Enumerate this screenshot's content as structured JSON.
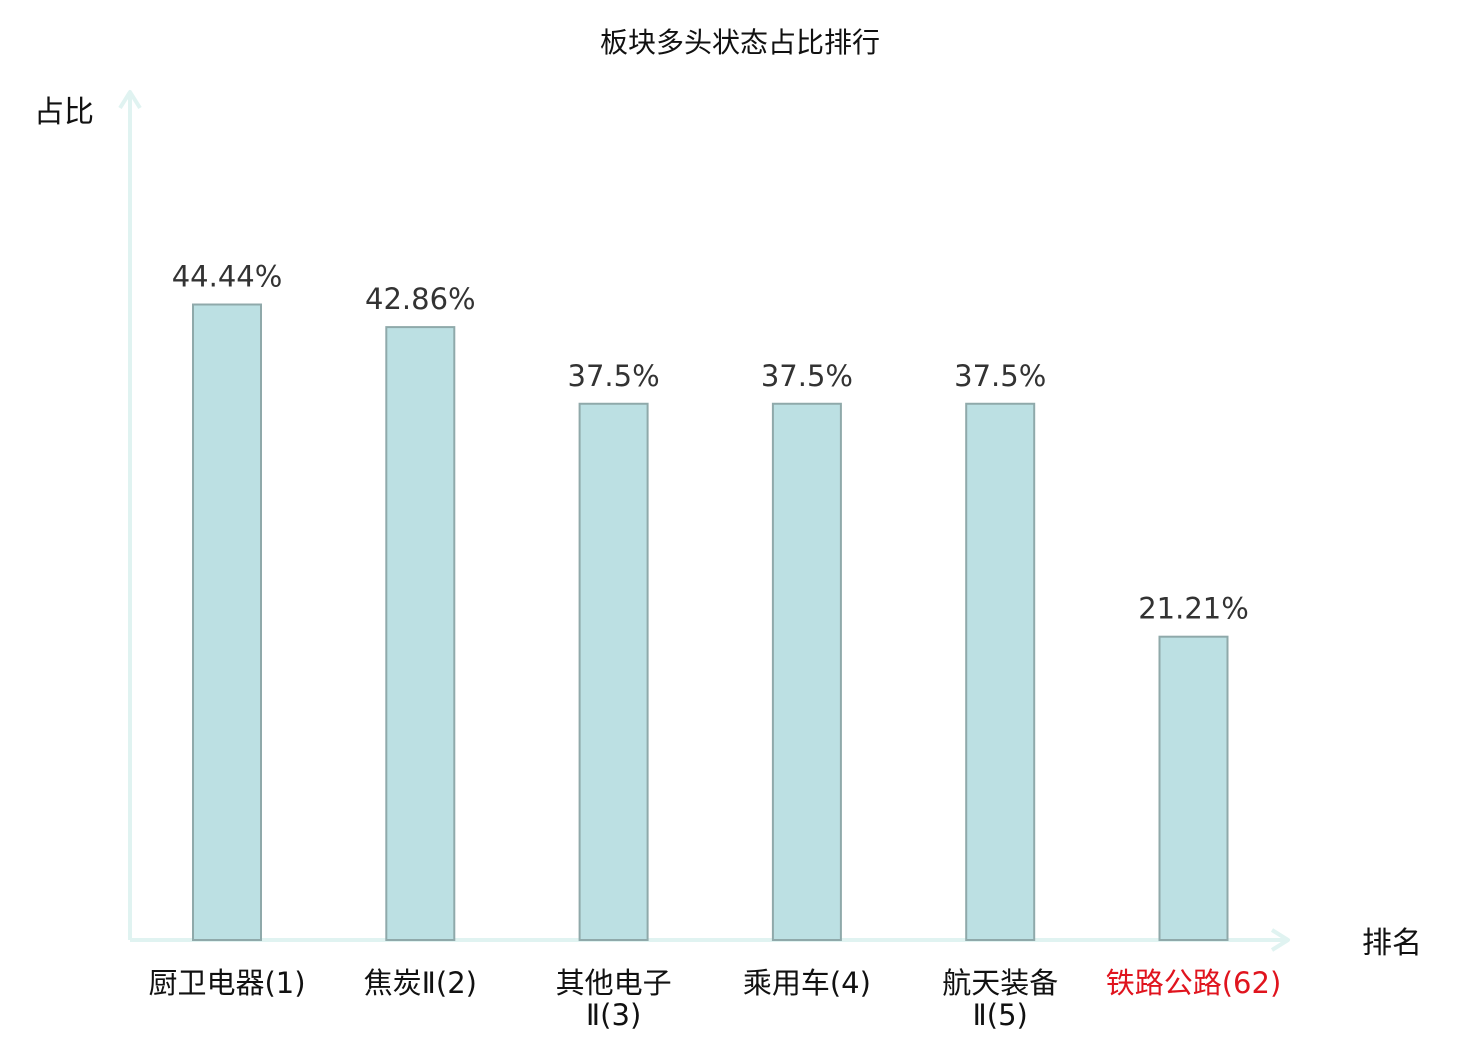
{
  "chart_data": {
    "type": "bar",
    "title": "板块多头状态占比排行",
    "ylabel": "占比",
    "xlabel": "排名",
    "categories": [
      {
        "lines": [
          "厨卫电器(1)"
        ],
        "highlight": false
      },
      {
        "lines": [
          "焦炭Ⅱ(2)"
        ],
        "highlight": false
      },
      {
        "lines": [
          "其他电子",
          "Ⅱ(3)"
        ],
        "highlight": false
      },
      {
        "lines": [
          "乘用车(4)"
        ],
        "highlight": false
      },
      {
        "lines": [
          "航天装备",
          "Ⅱ(5)"
        ],
        "highlight": false
      },
      {
        "lines": [
          "铁路公路(62)"
        ],
        "highlight": true
      }
    ],
    "values": [
      44.44,
      42.86,
      37.5,
      37.5,
      37.5,
      21.21
    ],
    "value_labels": [
      "44.44%",
      "42.86%",
      "37.5%",
      "37.5%",
      "37.5%",
      "21.21%"
    ],
    "colors": {
      "bar_fill": "#bce0e3",
      "bar_stroke": "#8fa9aa",
      "axis": "#e0f3f1",
      "label": "#333333",
      "highlight": "#e0141e"
    }
  }
}
